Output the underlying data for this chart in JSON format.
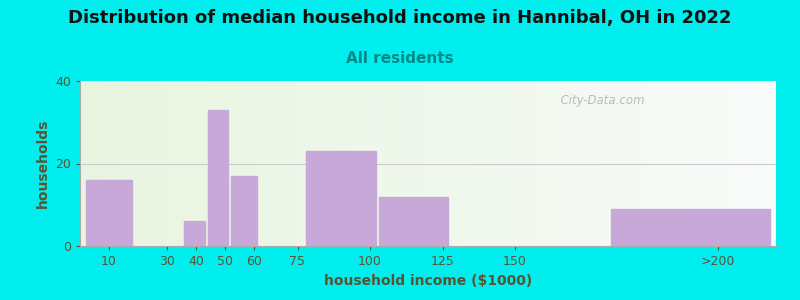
{
  "title": "Distribution of median household income in Hannibal, OH in 2022",
  "subtitle": "All residents",
  "xlabel": "household income ($1000)",
  "ylabel": "households",
  "background_color": "#00EEEE",
  "bar_color": "#c8a8d8",
  "categories": [
    "10",
    "30",
    "40",
    "50",
    "60",
    "75",
    "100",
    "125",
    "150",
    ">200"
  ],
  "values": [
    16,
    0,
    6,
    33,
    17,
    0,
    23,
    12,
    0,
    9
  ],
  "ylim": [
    0,
    40
  ],
  "yticks": [
    0,
    20,
    40
  ],
  "title_fontsize": 13,
  "subtitle_fontsize": 11,
  "label_fontsize": 10,
  "tick_fontsize": 9,
  "title_color": "#111111",
  "subtitle_color": "#008888",
  "axis_label_color": "#555533",
  "tick_color": "#555533",
  "watermark": "  City-Data.com",
  "grid_color": "#cccccc",
  "bar_lefts": [
    2,
    19,
    36,
    44,
    52,
    62,
    78,
    103,
    128,
    183
  ],
  "bar_rights": [
    18,
    35,
    43,
    51,
    61,
    77,
    102,
    127,
    177,
    238
  ],
  "xtick_positions": [
    10,
    30,
    40,
    50,
    60,
    75,
    100,
    125,
    150,
    220
  ],
  "xlim": [
    0,
    240
  ]
}
